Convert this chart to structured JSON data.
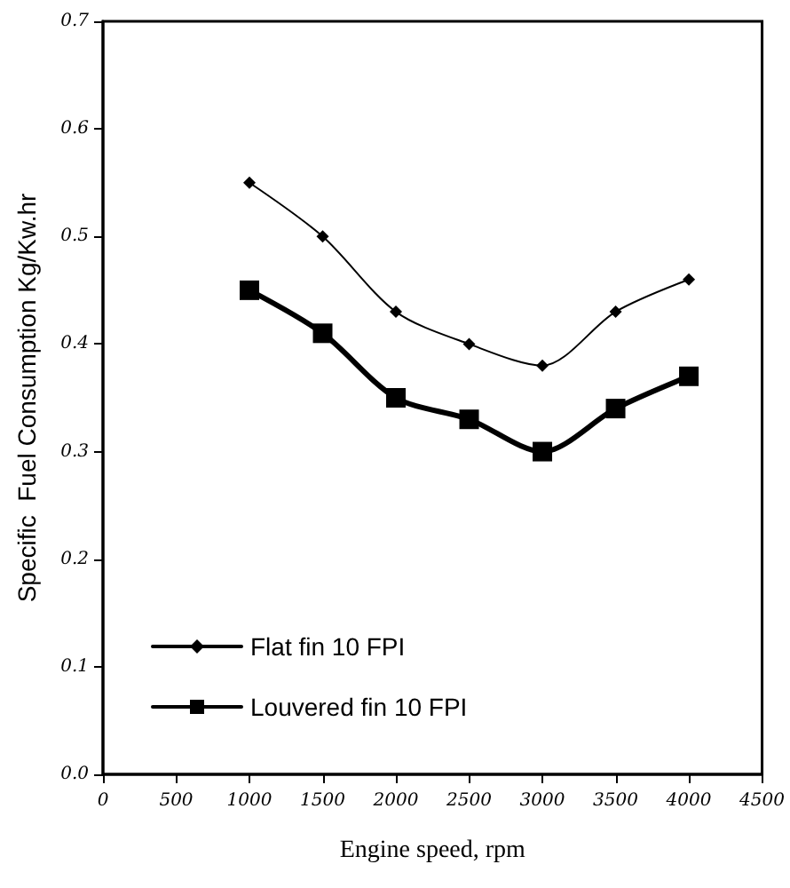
{
  "chart_data": {
    "type": "line",
    "xlabel": "Engine speed, rpm",
    "ylabel": "Specific  Fuel Consumption Kg/Kw.hr",
    "x": [
      1000,
      1500,
      2000,
      2500,
      3000,
      3500,
      4000
    ],
    "series": [
      {
        "name": "Flat fin 10 FPI",
        "color": "#000000",
        "marker": "diamond",
        "values": [
          0.55,
          0.5,
          0.43,
          0.4,
          0.38,
          0.43,
          0.46
        ]
      },
      {
        "name": "Louvered fin 10 FPI",
        "color": "#000000",
        "marker": "square",
        "values": [
          0.45,
          0.41,
          0.35,
          0.33,
          0.3,
          0.34,
          0.37
        ]
      }
    ],
    "xlim": [
      0,
      4500
    ],
    "xticks": [
      0,
      500,
      1000,
      1500,
      2000,
      2500,
      3000,
      3500,
      4000,
      4500
    ],
    "ylim": [
      0,
      0.7
    ],
    "yticks": [
      {
        "value": 0,
        "label": "0.0"
      },
      0.1,
      0.2,
      0.3,
      0.4,
      0.5,
      0.6,
      0.7
    ],
    "grid": false,
    "legend": "bottom left",
    "line_style": "solid"
  }
}
